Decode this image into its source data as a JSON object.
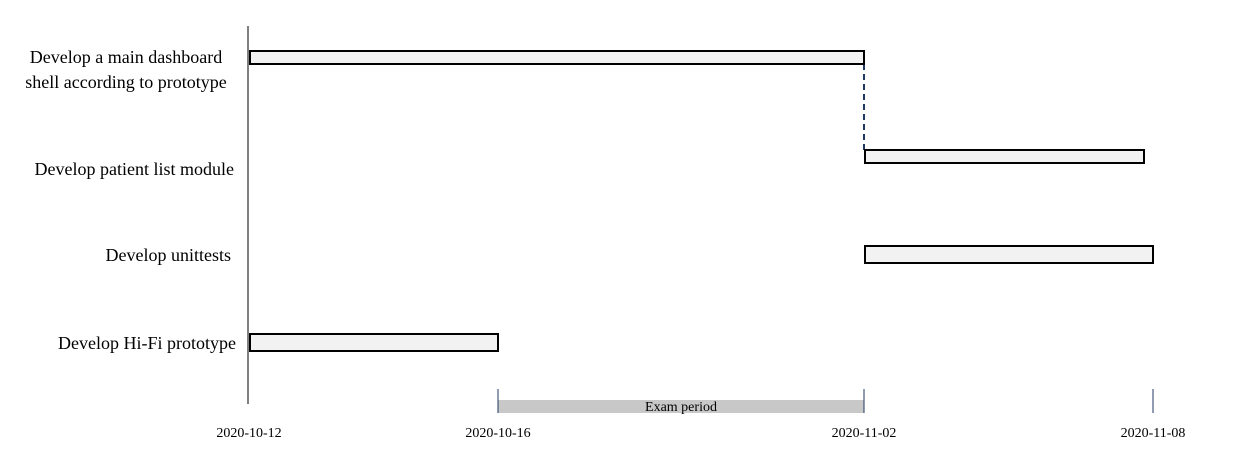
{
  "chart_data": {
    "type": "gantt",
    "tasks": [
      {
        "label_lines": [
          "Develop a main dashboard",
          "shell according to prototype"
        ],
        "start": "2020-10-12",
        "end": "2020-11-02"
      },
      {
        "label_lines": [
          "Develop patient list module"
        ],
        "start": "2020-11-02",
        "end": "2020-11-08"
      },
      {
        "label_lines": [
          "Develop unittests"
        ],
        "start": "2020-11-02",
        "end": "2020-11-08"
      },
      {
        "label_lines": [
          "Develop Hi-Fi prototype"
        ],
        "start": "2020-10-12",
        "end": "2020-10-16"
      }
    ],
    "x_ticks": [
      "2020-10-12",
      "2020-10-16",
      "2020-11-02",
      "2020-11-08"
    ],
    "period": {
      "label": "Exam period",
      "start": "2020-10-16",
      "end": "2020-11-02"
    },
    "dependency": {
      "from_task": 0,
      "to_task": 1
    }
  },
  "colors": {
    "bar_fill": "#f2f2f2",
    "bar_stroke": "#000000",
    "axis": "#000000",
    "tick": "#1f3864",
    "dependency_line": "#1f3864",
    "period_fill": "#c8c8c8"
  }
}
